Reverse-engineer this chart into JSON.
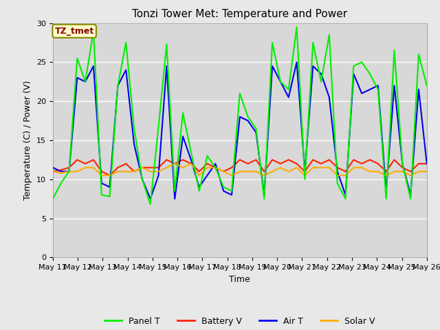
{
  "title": "Tonzi Tower Met: Temperature and Power",
  "xlabel": "Time",
  "ylabel": "Temperature (C) / Power (V)",
  "ylim": [
    0,
    30
  ],
  "yticks": [
    0,
    5,
    10,
    15,
    20,
    25,
    30
  ],
  "x_labels": [
    "May 11",
    "May 12",
    "May 13",
    "May 14",
    "May 15",
    "May 16",
    "May 17",
    "May 18",
    "May 19",
    "May 20",
    "May 21",
    "May 22",
    "May 23",
    "May 24",
    "May 25",
    "May 26"
  ],
  "annotation_text": "TZ_tmet",
  "annotation_box_color": "#ffffcc",
  "annotation_text_color": "#880000",
  "legend_entries": [
    "Panel T",
    "Battery V",
    "Air T",
    "Solar V"
  ],
  "line_colors": [
    "#00ee00",
    "#ff2200",
    "#0000ee",
    "#ffaa00"
  ],
  "fig_bg_color": "#e8e8e8",
  "plot_bg_color": "#d8d8d8",
  "grid_color": "#c0c0c0",
  "title_fontsize": 11,
  "label_fontsize": 9,
  "tick_fontsize": 8,
  "panel_t": [
    7.5,
    9.5,
    11.0,
    25.5,
    22.5,
    29.0,
    8.0,
    7.8,
    22.0,
    27.5,
    16.5,
    10.0,
    6.8,
    16.7,
    27.3,
    8.5,
    18.5,
    13.5,
    8.5,
    13.0,
    11.5,
    9.0,
    8.5,
    21.0,
    18.0,
    16.5,
    7.5,
    27.5,
    22.5,
    21.5,
    29.5,
    10.0,
    27.5,
    22.5,
    28.5,
    9.5,
    7.5,
    24.5,
    25.0,
    23.5,
    21.5,
    7.5,
    26.5,
    12.0,
    7.5,
    26.0,
    22.0
  ],
  "battery_v": [
    11.0,
    11.2,
    11.5,
    12.5,
    12.0,
    12.5,
    11.0,
    10.5,
    11.5,
    12.0,
    11.0,
    11.5,
    11.5,
    11.5,
    12.5,
    12.0,
    12.5,
    12.0,
    11.0,
    12.0,
    11.5,
    11.0,
    11.5,
    12.5,
    12.0,
    12.5,
    11.0,
    12.5,
    12.0,
    12.5,
    12.0,
    11.0,
    12.5,
    12.0,
    12.5,
    11.5,
    11.0,
    12.5,
    12.0,
    12.5,
    12.0,
    11.0,
    12.5,
    11.5,
    11.0,
    12.0,
    12.0
  ],
  "air_t": [
    11.5,
    11.0,
    11.0,
    23.0,
    22.5,
    24.5,
    9.5,
    9.0,
    22.0,
    24.0,
    14.5,
    10.0,
    7.5,
    10.5,
    24.5,
    7.5,
    15.5,
    12.5,
    9.0,
    10.5,
    12.0,
    8.5,
    8.0,
    18.0,
    17.5,
    16.0,
    8.0,
    24.5,
    22.5,
    20.5,
    25.0,
    11.0,
    24.5,
    23.5,
    20.5,
    11.0,
    8.0,
    23.5,
    21.0,
    21.5,
    22.0,
    8.5,
    22.0,
    12.0,
    8.0,
    21.5,
    12.0
  ],
  "solar_v": [
    11.0,
    10.8,
    11.0,
    11.0,
    11.5,
    11.5,
    10.5,
    10.5,
    11.0,
    11.0,
    11.0,
    11.5,
    11.0,
    11.0,
    11.5,
    12.0,
    11.5,
    12.0,
    10.5,
    11.5,
    11.5,
    11.0,
    10.5,
    11.0,
    11.0,
    11.0,
    10.5,
    11.0,
    11.5,
    11.0,
    11.5,
    10.5,
    11.5,
    11.5,
    11.5,
    10.5,
    10.5,
    11.5,
    11.5,
    11.0,
    11.0,
    10.5,
    11.0,
    11.0,
    10.5,
    11.0,
    11.0
  ]
}
